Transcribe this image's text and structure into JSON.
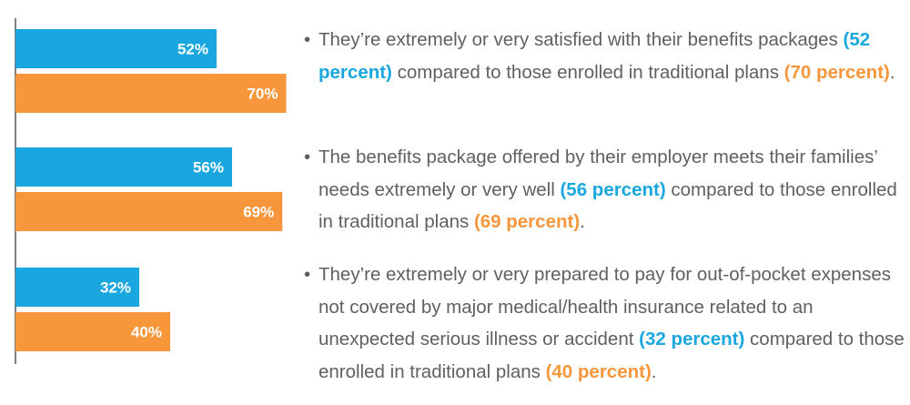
{
  "chart_data": {
    "type": "bar",
    "orientation": "horizontal",
    "categories": [
      "",
      "",
      ""
    ],
    "series": [
      {
        "values": [
          52,
          56,
          32
        ],
        "labels": [
          "52%",
          "56%",
          "32%"
        ],
        "color": "#1aa7e0"
      },
      {
        "values": [
          70,
          69,
          40
        ],
        "labels": [
          "70%",
          "69%",
          "40%"
        ],
        "color": "#f7963a"
      }
    ],
    "xlim": [
      0,
      100
    ],
    "grid": false,
    "legend": "none"
  },
  "colors": {
    "blue": "#1aa7e0",
    "orange": "#f7963a",
    "text": "#606060",
    "axis": "#555555"
  },
  "bullets": [
    {
      "pre": "They’re extremely or very satisfied with their benefits packages ",
      "hl1": "(52 percent)",
      "mid": " compared to those enrolled in traditional plans ",
      "hl2": "(70 percent)",
      "post": "."
    },
    {
      "pre": "The benefits package offered by their employer meets their families’ needs extremely or very well ",
      "hl1": "(56 percent)",
      "mid": " compared to those enrolled in traditional plans ",
      "hl2": "(69 percent)",
      "post": "."
    },
    {
      "pre": "They’re extremely or very prepared to pay for out-of-pocket expenses not covered by major medical/health insurance related to an unexpected serious illness or accident ",
      "hl1": "(32 percent)",
      "mid": " compared to those enrolled in traditional plans ",
      "hl2": "(40 percent)",
      "post": "."
    }
  ]
}
